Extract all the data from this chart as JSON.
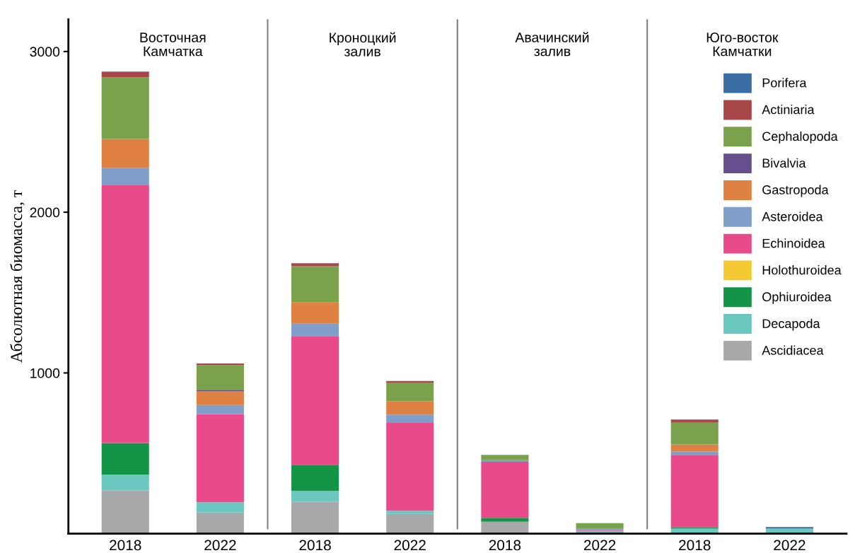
{
  "chart_data": {
    "type": "bar",
    "stacked": true,
    "ylabel": "Абсолютная биомасса, т",
    "categories": [
      "2018",
      "2022",
      "2018",
      "2022",
      "2018",
      "2022",
      "2018",
      "2022"
    ],
    "annotations": [
      "Восточная\nКамчатка",
      "Кроноцкий\nзалив",
      "Авачинский\nзалив",
      "Юго-восток\nКамчатки"
    ],
    "ylim": [
      0,
      3200
    ],
    "yticks": [
      1000,
      2000,
      3000
    ],
    "grid": false,
    "legend": "top right",
    "series": [
      {
        "name": "Ascidiacea",
        "color": "#a7a8aa",
        "values": [
          269,
          131,
          199,
          123,
          74,
          0,
          0,
          0
        ]
      },
      {
        "name": "Decapoda",
        "color": "#6cc7c0",
        "values": [
          99,
          64,
          67,
          20,
          0,
          17,
          31,
          31
        ]
      },
      {
        "name": "Ophiuroidea",
        "color": "#149447",
        "values": [
          196,
          0,
          162,
          0,
          24,
          0,
          8,
          0
        ]
      },
      {
        "name": "Holothuroidea",
        "color": "#f5c933",
        "values": [
          0,
          0,
          0,
          0,
          0,
          0,
          0,
          0
        ]
      },
      {
        "name": "Echinoidea",
        "color": "#e94b8a",
        "values": [
          1604,
          549,
          801,
          546,
          349,
          5,
          448,
          0
        ]
      },
      {
        "name": "Asteroidea",
        "color": "#7f9ec9",
        "values": [
          108,
          56,
          77,
          52,
          10,
          8,
          24,
          0
        ]
      },
      {
        "name": "Gastropoda",
        "color": "#de8143",
        "values": [
          180,
          85,
          134,
          83,
          0,
          0,
          44,
          0
        ]
      },
      {
        "name": "Bivalvia",
        "color": "#654f8e",
        "values": [
          0,
          10,
          0,
          0,
          0,
          0,
          0,
          0
        ]
      },
      {
        "name": "Cephalopoda",
        "color": "#7aa24d",
        "values": [
          383,
          154,
          224,
          116,
          33,
          35,
          135,
          0
        ]
      },
      {
        "name": "Actiniaria",
        "color": "#a8474a",
        "values": [
          36,
          10,
          18,
          10,
          0,
          0,
          20,
          0
        ]
      },
      {
        "name": "Porifera",
        "color": "#3a6ea5",
        "values": [
          0,
          0,
          0,
          0,
          0,
          0,
          0,
          10
        ]
      }
    ]
  }
}
